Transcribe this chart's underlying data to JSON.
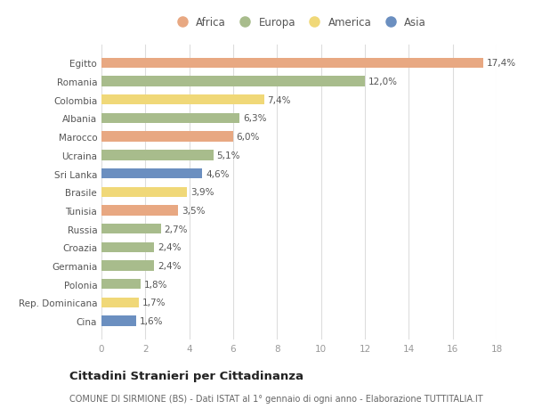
{
  "categories": [
    "Egitto",
    "Romania",
    "Colombia",
    "Albania",
    "Marocco",
    "Ucraina",
    "Sri Lanka",
    "Brasile",
    "Tunisia",
    "Russia",
    "Croazia",
    "Germania",
    "Polonia",
    "Rep. Dominicana",
    "Cina"
  ],
  "values": [
    17.4,
    12.0,
    7.4,
    6.3,
    6.0,
    5.1,
    4.6,
    3.9,
    3.5,
    2.7,
    2.4,
    2.4,
    1.8,
    1.7,
    1.6
  ],
  "labels": [
    "17,4%",
    "12,0%",
    "7,4%",
    "6,3%",
    "6,0%",
    "5,1%",
    "4,6%",
    "3,9%",
    "3,5%",
    "2,7%",
    "2,4%",
    "2,4%",
    "1,8%",
    "1,7%",
    "1,6%"
  ],
  "continents": [
    "Africa",
    "Europa",
    "America",
    "Europa",
    "Africa",
    "Europa",
    "Asia",
    "America",
    "Africa",
    "Europa",
    "Europa",
    "Europa",
    "Europa",
    "America",
    "Asia"
  ],
  "colors": {
    "Africa": "#E8A882",
    "Europa": "#A8BC8C",
    "America": "#F0D878",
    "Asia": "#6B8FC0"
  },
  "legend_order": [
    "Africa",
    "Europa",
    "America",
    "Asia"
  ],
  "xlim": [
    0,
    18
  ],
  "xticks": [
    0,
    2,
    4,
    6,
    8,
    10,
    12,
    14,
    16,
    18
  ],
  "title": "Cittadini Stranieri per Cittadinanza",
  "subtitle": "COMUNE DI SIRMIONE (BS) - Dati ISTAT al 1° gennaio di ogni anno - Elaborazione TUTTITALIA.IT",
  "bg_color": "#ffffff",
  "grid_color": "#dddddd",
  "bar_height": 0.55,
  "label_fontsize": 7.5,
  "ytick_fontsize": 7.5,
  "xtick_fontsize": 7.5,
  "legend_fontsize": 8.5,
  "title_fontsize": 9.5,
  "subtitle_fontsize": 7.0
}
